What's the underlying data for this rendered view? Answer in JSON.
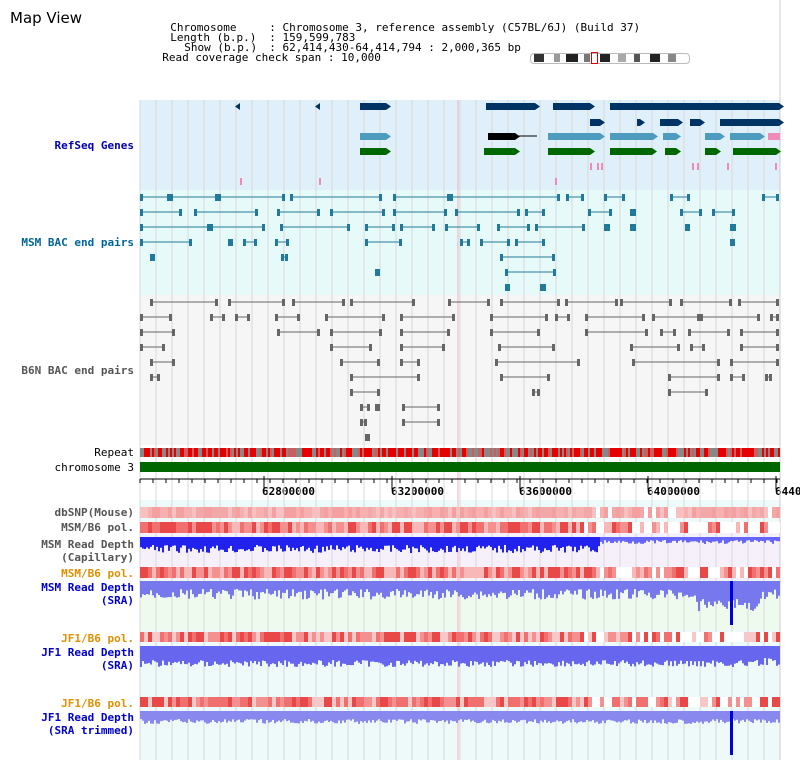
{
  "page": {
    "title": "Map View"
  },
  "info": {
    "chromosome_key": "Chromosome",
    "chromosome_value": "Chromosome 3, reference assembly (C57BL/6J) (Build 37)",
    "length_key": "Length (b.p.)",
    "length_value": "159,599,783",
    "show_key": "Show (b.p.)",
    "show_value": "62,414,430-64,414,794 : 2,000,365 bp",
    "coverage_key": "Read coverage check span",
    "coverage_value": "10,000",
    "separator": ":"
  },
  "view": {
    "start_bp": 62414430,
    "end_bp": 64414794
  },
  "tracks": {
    "refseq": {
      "label": "RefSeq Genes",
      "color": "#0000aa"
    },
    "msm_bac": {
      "label": "MSM BAC end pairs",
      "color": "#006699"
    },
    "b6n_bac": {
      "label": "B6N BAC end pairs",
      "color": "#555555"
    },
    "repeat": {
      "label": "Repeat"
    },
    "chromosome": {
      "label": "chromosome 3"
    },
    "dbsnp": {
      "label": "dbSNP(Mouse)",
      "color": "#555555"
    },
    "msm_b6_pol_1": {
      "label": "MSM/B6 pol.",
      "color": "#555555"
    },
    "msm_depth_cap": {
      "label": "MSM Read Depth",
      "label2": "(Capillary)",
      "color": "#555555"
    },
    "msm_b6_pol_2": {
      "label": "MSM/B6 pol.",
      "color": "#e09000"
    },
    "msm_depth_sra": {
      "label": "MSM Read Depth",
      "label2": "(SRA)",
      "color": "#0000cc"
    },
    "jf1_b6_pol_1": {
      "label": "JF1/B6 pol.",
      "color": "#e09000"
    },
    "jf1_depth_sra": {
      "label": "JF1 Read Depth",
      "label2": "(SRA)",
      "color": "#0000cc"
    },
    "jf1_b6_pol_2": {
      "label": "JF1/B6 pol.",
      "color": "#e09000"
    },
    "jf1_depth_trim": {
      "label": "JF1 Read Depth",
      "label2": "(SRA trimmed)",
      "color": "#0000cc"
    }
  },
  "axis": {
    "ticks": [
      "62800000",
      "63200000",
      "63600000",
      "64000000",
      "6440"
    ]
  }
}
